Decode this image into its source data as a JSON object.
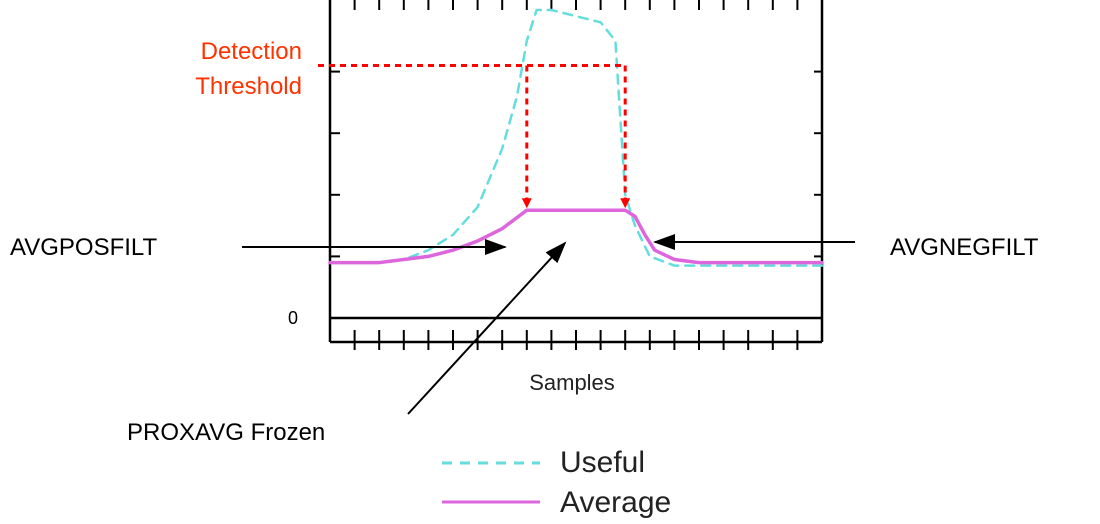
{
  "chart_data": {
    "type": "line",
    "xlabel": "Samples",
    "ylabel": "",
    "y_tick_labels": [
      "0"
    ],
    "x_range": [
      0,
      100
    ],
    "y_range": [
      -10,
      100
    ],
    "threshold": {
      "label_line1": "Detection",
      "label_line2": "Threshold",
      "value": 82,
      "color": "#ff0000"
    },
    "series": [
      {
        "name": "Useful",
        "style": "dashed",
        "color": "#66dddd",
        "x": [
          0,
          10,
          15,
          20,
          25,
          30,
          35,
          38,
          40,
          42,
          45,
          50,
          55,
          58,
          60,
          62,
          65,
          70,
          75,
          80,
          85,
          90,
          95,
          100
        ],
        "y": [
          18,
          18,
          19,
          22,
          27,
          36,
          55,
          72,
          90,
          100,
          100,
          98,
          96,
          90,
          40,
          30,
          20,
          17,
          17,
          17,
          17,
          17,
          17,
          17
        ]
      },
      {
        "name": "Average",
        "style": "solid",
        "color": "#dd66dd",
        "x": [
          0,
          10,
          15,
          20,
          25,
          30,
          35,
          40,
          60,
          62,
          64,
          66,
          70,
          75,
          80,
          85,
          90,
          95,
          100
        ],
        "y": [
          18,
          18,
          19,
          20,
          22,
          25,
          29,
          35,
          35,
          33,
          27,
          22,
          19,
          18,
          18,
          18,
          18,
          18,
          18
        ]
      }
    ],
    "annotations": [
      {
        "id": "avgposfilt",
        "text": "AVGPOSFILT",
        "x": 35,
        "y": 29
      },
      {
        "id": "avgnegfilt",
        "text": "AVGNEGFILT",
        "x": 65,
        "y": 25
      },
      {
        "id": "proxavg",
        "text": "PROXAVG Frozen",
        "x": 48,
        "y": 35
      }
    ],
    "legend": [
      {
        "label": "Useful",
        "style": "dashed",
        "color": "#66dddd"
      },
      {
        "label": "Average",
        "style": "solid",
        "color": "#dd66dd"
      }
    ],
    "legend_position": "bottom"
  }
}
